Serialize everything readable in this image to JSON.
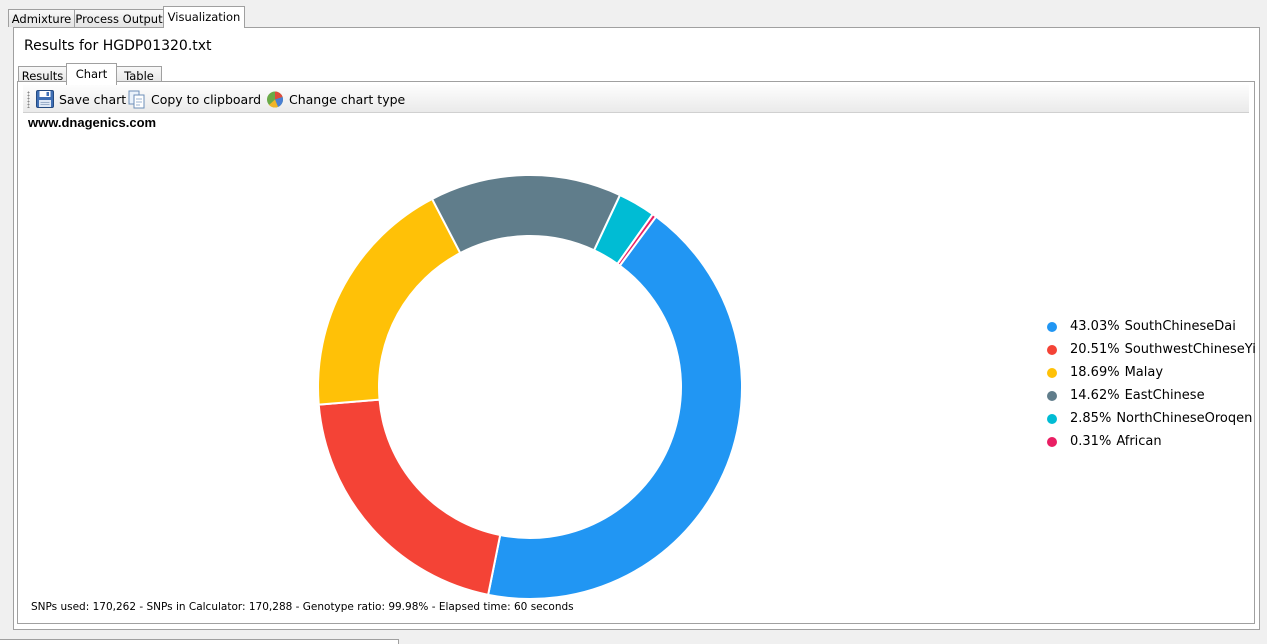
{
  "top_tabs": [
    {
      "label": "Admixture"
    },
    {
      "label": "Process Output"
    },
    {
      "label": "Visualization"
    }
  ],
  "results_title": "Results for HGDP01320.txt",
  "inner_tabs": [
    {
      "label": "Results"
    },
    {
      "label": "Chart"
    },
    {
      "label": "Table"
    }
  ],
  "toolbar": {
    "save_label": "Save chart",
    "copy_label": "Copy to clipboard",
    "change_label": "Change chart type",
    "save_icon": "floppy-disk-icon",
    "copy_icon": "copy-icon",
    "change_icon": "pie-chart-icon"
  },
  "watermark": "www.dnagenics.com",
  "footer": "SNPs used: 170,262 - SNPs in Calculator: 170,288 - Genotype ratio: 99.98% - Elapsed time: 60 seconds",
  "chart_data": {
    "type": "pie",
    "variant": "donut",
    "title": "",
    "legend_position": "right",
    "series": [
      {
        "name": "SouthChineseDai",
        "value": 43.03,
        "percent_label": "43.03%",
        "color": "#2196f3"
      },
      {
        "name": "SouthwestChineseYi",
        "value": 20.51,
        "percent_label": "20.51%",
        "color": "#f44336"
      },
      {
        "name": "Malay",
        "value": 18.69,
        "percent_label": "18.69%",
        "color": "#ffc107"
      },
      {
        "name": "EastChinese",
        "value": 14.62,
        "percent_label": "14.62%",
        "color": "#607d8b"
      },
      {
        "name": "NorthChineseOroqen",
        "value": 2.85,
        "percent_label": "2.85%",
        "color": "#00bcd4"
      },
      {
        "name": "African",
        "value": 0.31,
        "percent_label": "0.31%",
        "color": "#e91e63"
      }
    ]
  }
}
